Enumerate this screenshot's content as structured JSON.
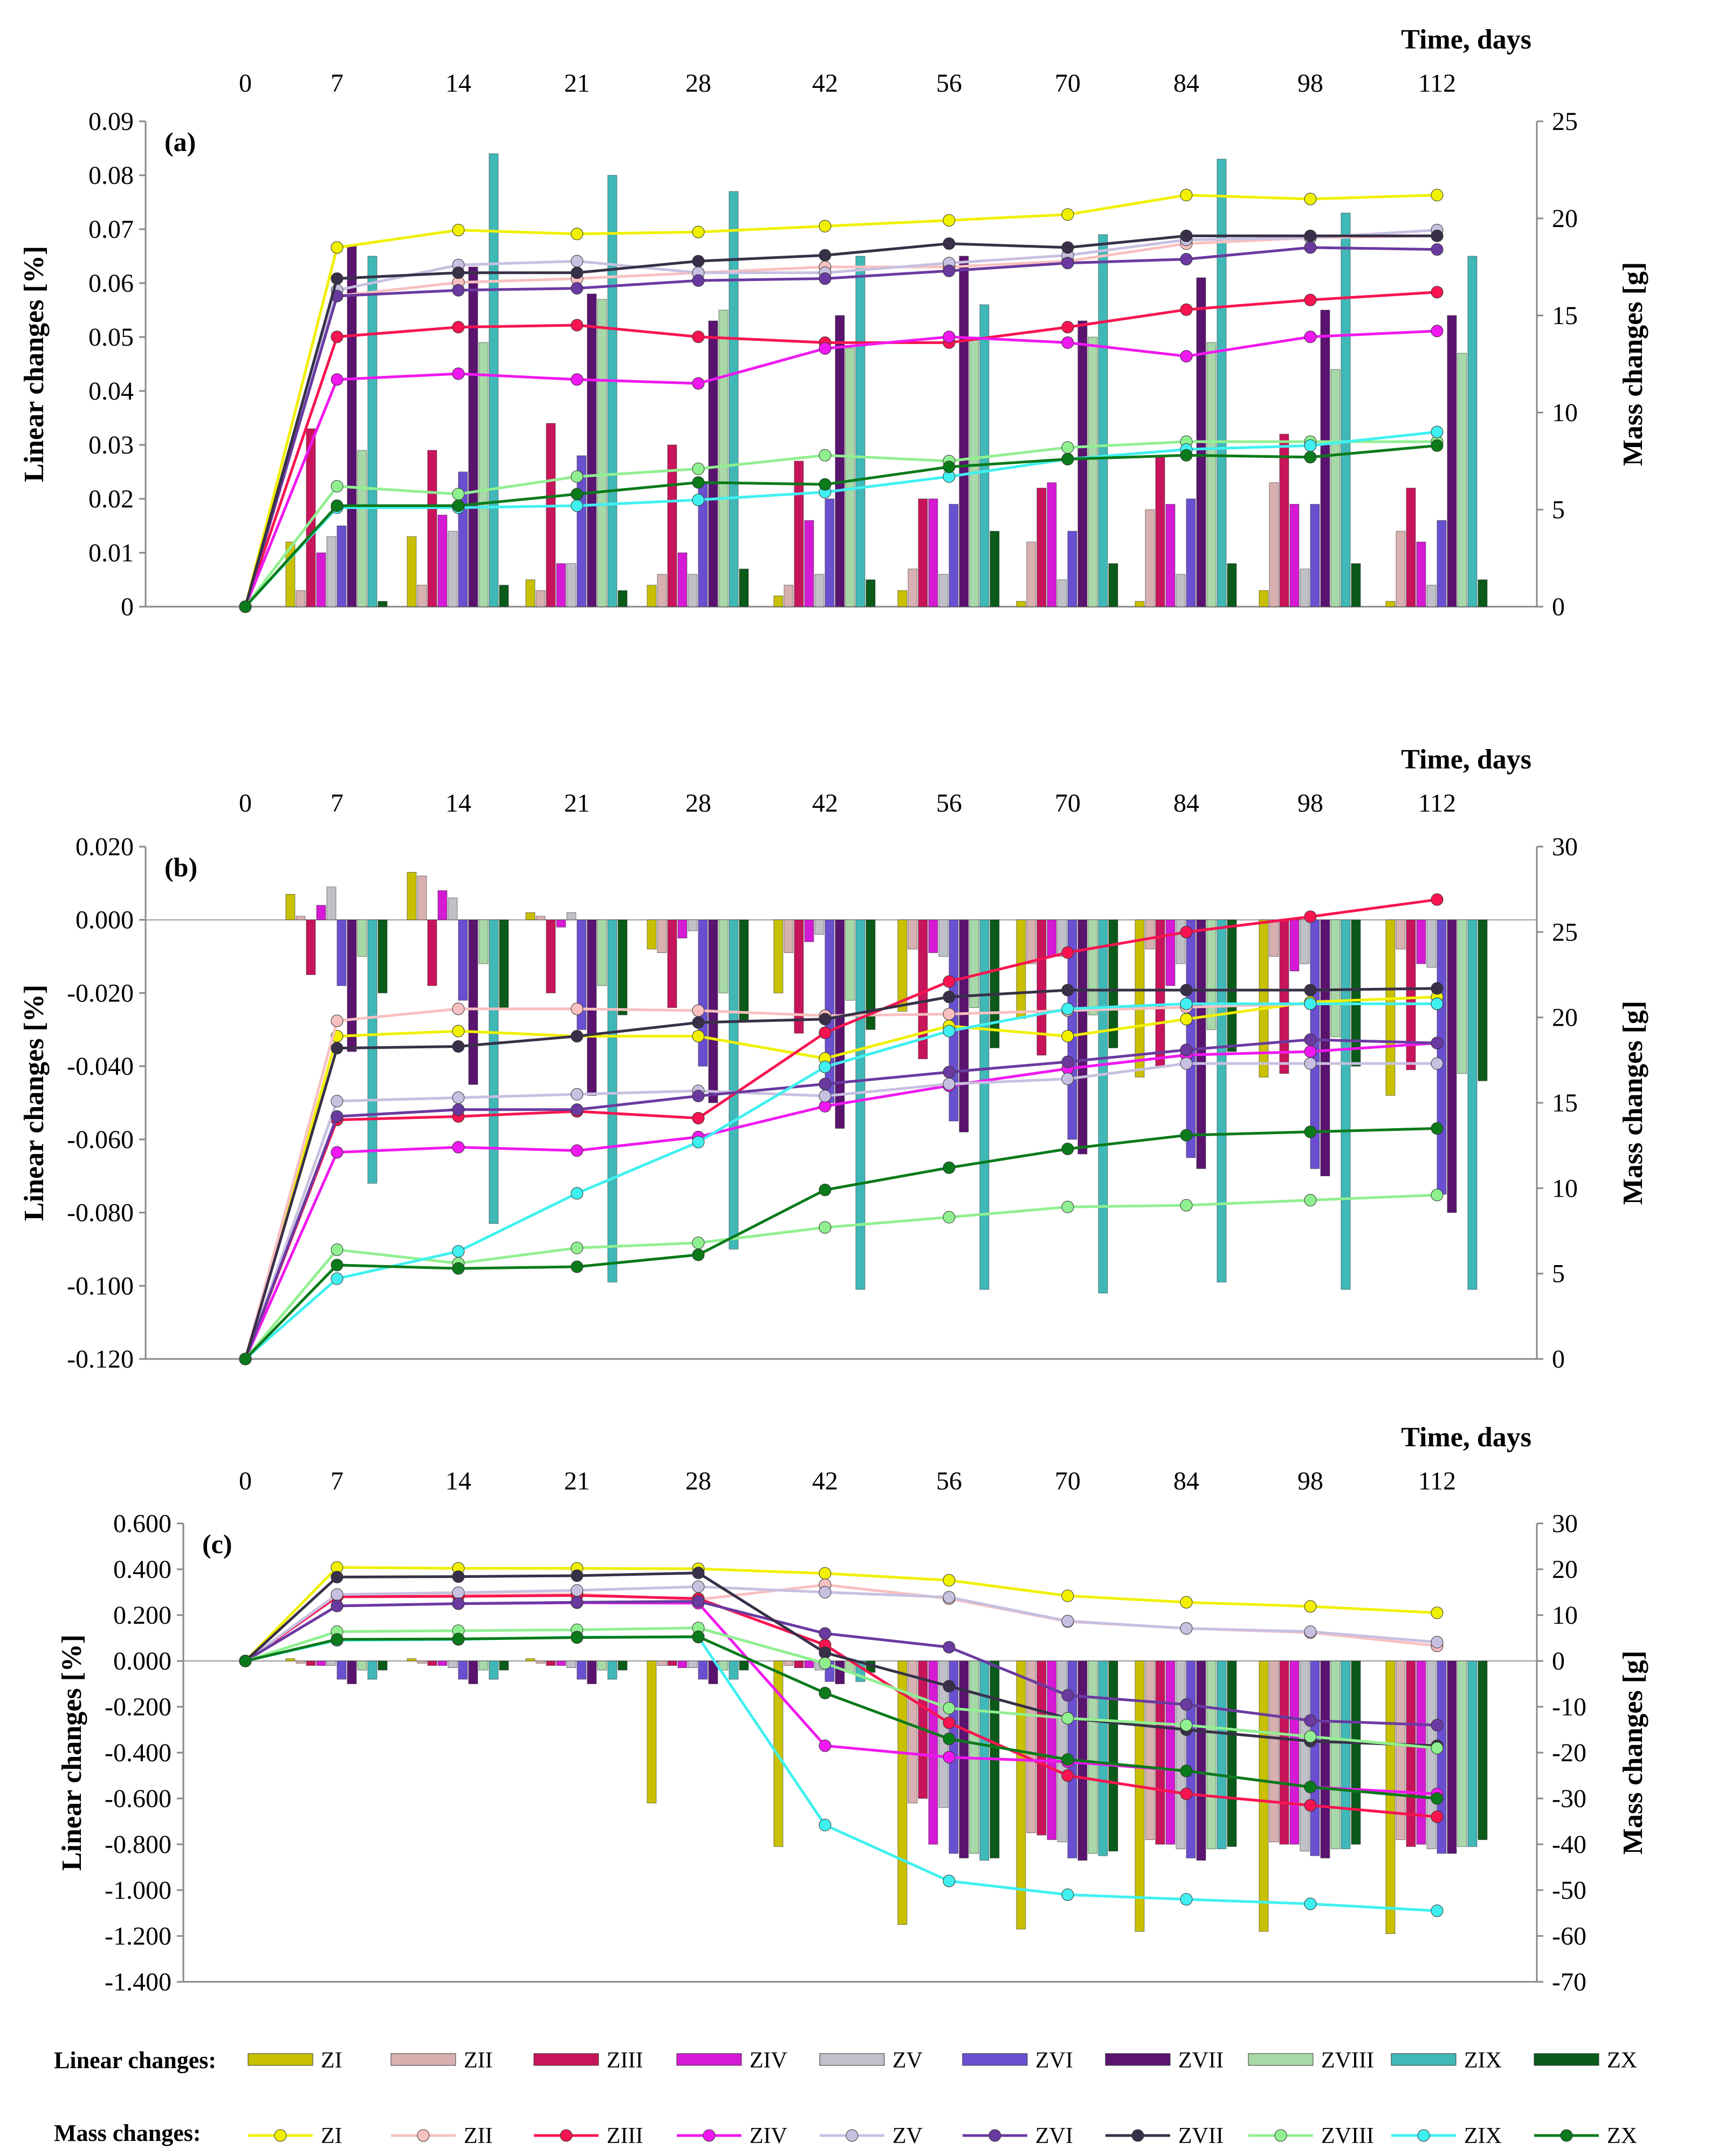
{
  "legend": {
    "linear_title": "Linear changes:",
    "mass_title": "Mass changes:",
    "series": [
      "ZI",
      "ZII",
      "ZIII",
      "ZIV",
      "ZV",
      "ZVI",
      "ZVII",
      "ZVIII",
      "ZIX",
      "ZX"
    ]
  },
  "colors": {
    "bar": [
      "#c8c000",
      "#d8b0b0",
      "#c8145a",
      "#d41ad4",
      "#c0c0c8",
      "#6a50d0",
      "#5a1470",
      "#a8d8a8",
      "#40b8b8",
      "#0a5a1a"
    ],
    "line": [
      "#f0f000",
      "#f8c0c0",
      "#f81450",
      "#f018f0",
      "#c8c0e0",
      "#6a3aa0",
      "#383048",
      "#90f090",
      "#40f0f0",
      "#0a7a1a"
    ]
  },
  "chart_data": [
    {
      "panel": "(a)",
      "type": "bar",
      "x_title": "Time, days",
      "categories": [
        "0",
        "7",
        "14",
        "21",
        "28",
        "42",
        "56",
        "70",
        "84",
        "98",
        "112"
      ],
      "ylabel": "Linear changes [%]",
      "y2label": "Mass changes [g]",
      "ylim": [
        0,
        0.09
      ],
      "yticks": [
        0,
        0.01,
        0.02,
        0.03,
        0.04,
        0.05,
        0.06,
        0.07,
        0.08,
        0.09
      ],
      "y2lim": [
        0,
        25
      ],
      "y2ticks": [
        0,
        5,
        10,
        15,
        20,
        25
      ],
      "bars": [
        {
          "name": "ZI",
          "values": [
            0,
            0.012,
            0.013,
            0.005,
            0.004,
            0.002,
            0.003,
            0.001,
            0.001,
            0.003,
            0.001
          ]
        },
        {
          "name": "ZII",
          "values": [
            0,
            0.003,
            0.004,
            0.003,
            0.006,
            0.004,
            0.007,
            0.012,
            0.018,
            0.023,
            0.014
          ]
        },
        {
          "name": "ZIII",
          "values": [
            0,
            0.033,
            0.029,
            0.034,
            0.03,
            0.027,
            0.02,
            0.022,
            0.028,
            0.032,
            0.022
          ]
        },
        {
          "name": "ZIV",
          "values": [
            0,
            0.01,
            0.017,
            0.008,
            0.01,
            0.016,
            0.02,
            0.023,
            0.019,
            0.019,
            0.012
          ]
        },
        {
          "name": "ZV",
          "values": [
            0,
            0.013,
            0.014,
            0.008,
            0.006,
            0.006,
            0.006,
            0.005,
            0.006,
            0.007,
            0.004
          ]
        },
        {
          "name": "ZVI",
          "values": [
            0,
            0.015,
            0.025,
            0.028,
            0.023,
            0.02,
            0.019,
            0.014,
            0.02,
            0.019,
            0.016
          ]
        },
        {
          "name": "ZVII",
          "values": [
            0,
            0.067,
            0.063,
            0.058,
            0.053,
            0.054,
            0.065,
            0.053,
            0.061,
            0.055,
            0.054
          ]
        },
        {
          "name": "ZVIII",
          "values": [
            0,
            0.029,
            0.049,
            0.057,
            0.055,
            0.048,
            0.05,
            0.05,
            0.049,
            0.044,
            0.047
          ]
        },
        {
          "name": "ZIX",
          "values": [
            0,
            0.065,
            0.084,
            0.08,
            0.077,
            0.065,
            0.056,
            0.069,
            0.083,
            0.073,
            0.065
          ]
        },
        {
          "name": "ZX",
          "values": [
            0,
            0.001,
            0.004,
            0.003,
            0.007,
            0.005,
            0.014,
            0.008,
            0.008,
            0.008,
            0.005
          ]
        }
      ],
      "lines": [
        {
          "name": "ZI",
          "values": [
            0,
            18.5,
            19.4,
            19.2,
            19.3,
            19.6,
            19.9,
            20.2,
            21.2,
            21.0,
            21.2
          ]
        },
        {
          "name": "ZII",
          "values": [
            0,
            16.0,
            16.7,
            16.9,
            17.2,
            17.5,
            17.5,
            17.8,
            18.7,
            19.0,
            19.1
          ]
        },
        {
          "name": "ZIII",
          "values": [
            0,
            13.9,
            14.4,
            14.5,
            13.9,
            13.6,
            13.6,
            14.4,
            15.3,
            15.8,
            16.2
          ]
        },
        {
          "name": "ZIV",
          "values": [
            0,
            11.7,
            12.0,
            11.7,
            11.5,
            13.3,
            13.9,
            13.6,
            12.9,
            13.9,
            14.2
          ]
        },
        {
          "name": "ZV",
          "values": [
            0,
            16.3,
            17.6,
            17.8,
            17.2,
            17.2,
            17.7,
            18.1,
            18.9,
            19.0,
            19.4
          ]
        },
        {
          "name": "ZVI",
          "values": [
            0,
            16.0,
            16.3,
            16.4,
            16.8,
            16.9,
            17.3,
            17.7,
            17.9,
            18.5,
            18.4
          ]
        },
        {
          "name": "ZVII",
          "values": [
            0,
            16.9,
            17.2,
            17.2,
            17.8,
            18.1,
            18.7,
            18.5,
            19.1,
            19.1,
            19.1
          ]
        },
        {
          "name": "ZVIII",
          "values": [
            0,
            6.2,
            5.8,
            6.7,
            7.1,
            7.8,
            7.5,
            8.2,
            8.5,
            8.5,
            8.5
          ]
        },
        {
          "name": "ZIX",
          "values": [
            0,
            5.1,
            5.1,
            5.2,
            5.5,
            5.9,
            6.7,
            7.6,
            8.1,
            8.3,
            9.0
          ]
        },
        {
          "name": "ZX",
          "values": [
            0,
            5.2,
            5.2,
            5.8,
            6.4,
            6.3,
            7.2,
            7.6,
            7.8,
            7.7,
            8.3
          ]
        }
      ]
    },
    {
      "panel": "(b)",
      "type": "bar",
      "x_title": "Time, days",
      "categories": [
        "0",
        "7",
        "14",
        "21",
        "28",
        "42",
        "56",
        "70",
        "84",
        "98",
        "112"
      ],
      "ylabel": "Linear changes [%]",
      "y2label": "Mass changes [g]",
      "ylim": [
        -0.12,
        0.02
      ],
      "yticks": [
        "0.020",
        "0.000",
        "-0.020",
        "-0.040",
        "-0.060",
        "-0.080",
        "-0.100",
        "-0.120"
      ],
      "y2lim": [
        0,
        30
      ],
      "y2ticks": [
        0,
        5,
        10,
        15,
        20,
        25,
        30
      ],
      "bars": [
        {
          "name": "ZI",
          "values": [
            0,
            0.007,
            0.013,
            0.002,
            -0.008,
            -0.02,
            -0.025,
            -0.027,
            -0.043,
            -0.043,
            -0.048
          ]
        },
        {
          "name": "ZII",
          "values": [
            0,
            0.001,
            0.012,
            0.001,
            -0.009,
            -0.009,
            -0.008,
            -0.012,
            -0.008,
            -0.01,
            -0.008
          ]
        },
        {
          "name": "ZIII",
          "values": [
            0,
            -0.015,
            -0.018,
            -0.02,
            -0.024,
            -0.031,
            -0.038,
            -0.037,
            -0.04,
            -0.042,
            -0.041
          ]
        },
        {
          "name": "ZIV",
          "values": [
            0,
            0.004,
            0.008,
            -0.002,
            -0.005,
            -0.006,
            -0.009,
            -0.01,
            -0.018,
            -0.014,
            -0.012
          ]
        },
        {
          "name": "ZV",
          "values": [
            0,
            0.009,
            0.006,
            0.002,
            -0.003,
            -0.004,
            -0.01,
            -0.01,
            -0.012,
            -0.012,
            -0.013
          ]
        },
        {
          "name": "ZVI",
          "values": [
            0,
            -0.018,
            -0.022,
            -0.03,
            -0.04,
            -0.05,
            -0.055,
            -0.06,
            -0.065,
            -0.068,
            -0.075
          ]
        },
        {
          "name": "ZVII",
          "values": [
            0,
            -0.036,
            -0.045,
            -0.048,
            -0.05,
            -0.057,
            -0.058,
            -0.064,
            -0.068,
            -0.07,
            -0.08
          ]
        },
        {
          "name": "ZVIII",
          "values": [
            0,
            -0.01,
            -0.012,
            -0.018,
            -0.02,
            -0.022,
            -0.024,
            -0.026,
            -0.03,
            -0.032,
            -0.042
          ]
        },
        {
          "name": "ZIX",
          "values": [
            0,
            -0.072,
            -0.083,
            -0.099,
            -0.09,
            -0.101,
            -0.101,
            -0.102,
            -0.099,
            -0.101,
            -0.101
          ]
        },
        {
          "name": "ZX",
          "values": [
            0,
            -0.02,
            -0.024,
            -0.026,
            -0.028,
            -0.03,
            -0.035,
            -0.035,
            -0.036,
            -0.04,
            -0.044
          ]
        }
      ],
      "lines": [
        {
          "name": "ZI",
          "values": [
            0,
            18.9,
            19.2,
            18.9,
            18.9,
            17.6,
            19.5,
            18.9,
            19.9,
            20.9,
            21.2
          ]
        },
        {
          "name": "ZII",
          "values": [
            0,
            19.8,
            20.5,
            20.5,
            20.4,
            20.1,
            20.2,
            20.4,
            20.6,
            20.8,
            20.8
          ]
        },
        {
          "name": "ZIII",
          "values": [
            0,
            14.0,
            14.2,
            14.5,
            14.1,
            19.1,
            22.1,
            23.8,
            25.0,
            25.9,
            26.9
          ]
        },
        {
          "name": "ZIV",
          "values": [
            0,
            12.1,
            12.4,
            12.2,
            13.0,
            14.8,
            16.0,
            17.0,
            17.8,
            18.0,
            18.5
          ]
        },
        {
          "name": "ZV",
          "values": [
            0,
            15.1,
            15.3,
            15.5,
            15.7,
            15.4,
            16.1,
            16.4,
            17.3,
            17.3,
            17.3
          ]
        },
        {
          "name": "ZVI",
          "values": [
            0,
            14.2,
            14.6,
            14.6,
            15.4,
            16.1,
            16.8,
            17.4,
            18.1,
            18.7,
            18.5
          ]
        },
        {
          "name": "ZVII",
          "values": [
            0,
            18.2,
            18.3,
            18.9,
            19.7,
            19.9,
            21.2,
            21.6,
            21.6,
            21.6,
            21.7
          ]
        },
        {
          "name": "ZVIII",
          "values": [
            0,
            6.4,
            5.6,
            6.5,
            6.8,
            7.7,
            8.3,
            8.9,
            9.0,
            9.3,
            9.6
          ]
        },
        {
          "name": "ZIX",
          "values": [
            0,
            4.7,
            6.3,
            9.7,
            12.7,
            17.1,
            19.2,
            20.5,
            20.8,
            20.8,
            20.8
          ]
        },
        {
          "name": "ZX",
          "values": [
            0,
            5.5,
            5.3,
            5.4,
            6.1,
            9.9,
            11.2,
            12.3,
            13.1,
            13.3,
            13.5
          ]
        }
      ]
    },
    {
      "panel": "(c)",
      "type": "bar",
      "x_title": "Time, days",
      "categories": [
        "0",
        "7",
        "14",
        "21",
        "28",
        "42",
        "56",
        "70",
        "84",
        "98",
        "112"
      ],
      "ylabel": "Linear changes [%]",
      "y2label": "Mass changes  [g]",
      "ylim": [
        -1.4,
        0.6
      ],
      "yticks": [
        "0.600",
        "0.400",
        "0.200",
        "0.000",
        "-0.200",
        "-0.400",
        "-0.600",
        "-0.800",
        "-1.000",
        "-1.200",
        "-1.400"
      ],
      "y2lim": [
        -70,
        30
      ],
      "y2ticks": [
        30,
        20,
        10,
        0,
        -10,
        -20,
        -30,
        -40,
        -50,
        -60,
        -70
      ],
      "bars": [
        {
          "name": "ZI",
          "values": [
            0,
            0.01,
            0.01,
            0.01,
            -0.62,
            -0.81,
            -1.15,
            -1.17,
            -1.18,
            -1.18,
            -1.19
          ]
        },
        {
          "name": "ZII",
          "values": [
            0,
            -0.01,
            -0.01,
            -0.01,
            -0.02,
            -0.02,
            -0.62,
            -0.75,
            -0.78,
            -0.79,
            -0.78
          ]
        },
        {
          "name": "ZIII",
          "values": [
            0,
            -0.02,
            -0.02,
            -0.02,
            -0.02,
            -0.03,
            -0.6,
            -0.76,
            -0.8,
            -0.8,
            -0.81
          ]
        },
        {
          "name": "ZIV",
          "values": [
            0,
            -0.02,
            -0.02,
            -0.02,
            -0.03,
            -0.03,
            -0.8,
            -0.78,
            -0.8,
            -0.8,
            -0.8
          ]
        },
        {
          "name": "ZV",
          "values": [
            0,
            -0.02,
            -0.03,
            -0.03,
            -0.03,
            -0.04,
            -0.64,
            -0.79,
            -0.82,
            -0.83,
            -0.82
          ]
        },
        {
          "name": "ZVI",
          "values": [
            0,
            -0.08,
            -0.08,
            -0.08,
            -0.08,
            -0.09,
            -0.84,
            -0.86,
            -0.86,
            -0.85,
            -0.84
          ]
        },
        {
          "name": "ZVII",
          "values": [
            0,
            -0.1,
            -0.1,
            -0.1,
            -0.1,
            -0.1,
            -0.86,
            -0.87,
            -0.87,
            -0.86,
            -0.84
          ]
        },
        {
          "name": "ZVIII",
          "values": [
            0,
            -0.04,
            -0.04,
            -0.04,
            -0.04,
            -0.05,
            -0.84,
            -0.84,
            -0.82,
            -0.82,
            -0.81
          ]
        },
        {
          "name": "ZIX",
          "values": [
            0,
            -0.08,
            -0.08,
            -0.08,
            -0.08,
            -0.09,
            -0.87,
            -0.85,
            -0.82,
            -0.82,
            -0.81
          ]
        },
        {
          "name": "ZX",
          "values": [
            0,
            -0.04,
            -0.04,
            -0.04,
            -0.04,
            -0.05,
            -0.86,
            -0.83,
            -0.81,
            -0.8,
            -0.78
          ]
        }
      ],
      "lines": [
        {
          "name": "ZI",
          "values": [
            0,
            20.4,
            20.2,
            20.2,
            20.1,
            19.1,
            17.6,
            14.2,
            12.8,
            11.9,
            10.5
          ]
        },
        {
          "name": "ZII",
          "values": [
            0,
            14.0,
            14.3,
            14.6,
            13.4,
            16.6,
            13.6,
            8.6,
            7.1,
            6.2,
            3.3
          ]
        },
        {
          "name": "ZIII",
          "values": [
            0,
            14.0,
            14.1,
            14.3,
            13.6,
            3.5,
            -13.5,
            -25.0,
            -29.0,
            -31.5,
            -34.0
          ]
        },
        {
          "name": "ZIV",
          "values": [
            0,
            12.0,
            12.5,
            12.7,
            12.6,
            -18.5,
            -21.0,
            -22.0,
            -24.0,
            -27.5,
            -29.0
          ]
        },
        {
          "name": "ZV",
          "values": [
            0,
            14.5,
            14.9,
            15.4,
            16.2,
            15.0,
            13.9,
            8.7,
            7.1,
            6.4,
            4.1
          ]
        },
        {
          "name": "ZVI",
          "values": [
            0,
            12.0,
            12.5,
            12.8,
            13.0,
            6.0,
            3.0,
            -7.5,
            -9.5,
            -13.0,
            -14.0
          ]
        },
        {
          "name": "ZVII",
          "values": [
            0,
            18.3,
            18.4,
            18.6,
            19.2,
            1.8,
            -5.5,
            -12.5,
            -15.0,
            -17.5,
            -18.5
          ]
        },
        {
          "name": "ZVIII",
          "values": [
            0,
            6.4,
            6.6,
            6.8,
            7.2,
            -0.5,
            -10.3,
            -12.5,
            -14.0,
            -16.5,
            -19.0
          ]
        },
        {
          "name": "ZIX",
          "values": [
            0,
            4.5,
            4.7,
            5.2,
            5.2,
            -35.8,
            -48.0,
            -51.0,
            -52.0,
            -53.0,
            -54.5
          ]
        },
        {
          "name": "ZX",
          "values": [
            0,
            4.7,
            4.8,
            5.1,
            5.3,
            -7.0,
            -17.0,
            -21.5,
            -24.0,
            -27.5,
            -30.0
          ]
        }
      ]
    }
  ]
}
